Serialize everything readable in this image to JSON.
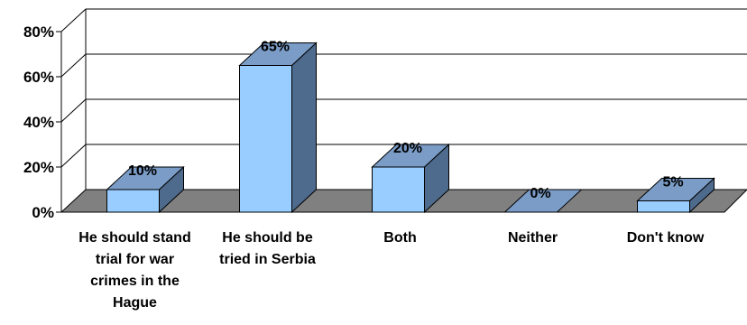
{
  "chart_data": {
    "type": "bar",
    "style": "3d-column",
    "categories": [
      "He should stand trial for war crimes in the Hague",
      "He should be tried in Serbia",
      "Both",
      "Neither",
      "Don't know"
    ],
    "values": [
      10,
      65,
      20,
      0,
      5
    ],
    "value_labels": [
      "10%",
      "65%",
      "20%",
      "0%",
      "5%"
    ],
    "y_ticks": [
      "0%",
      "20%",
      "40%",
      "60%",
      "80%"
    ],
    "ylim": [
      0,
      80
    ],
    "gridlines": true,
    "legend": "none",
    "colors": {
      "bar_front": "#99ccff",
      "bar_top": "#7a9cc7",
      "bar_side": "#4e6a8c",
      "floor": "#808080",
      "zero_bar": "#7a9cc7"
    }
  }
}
